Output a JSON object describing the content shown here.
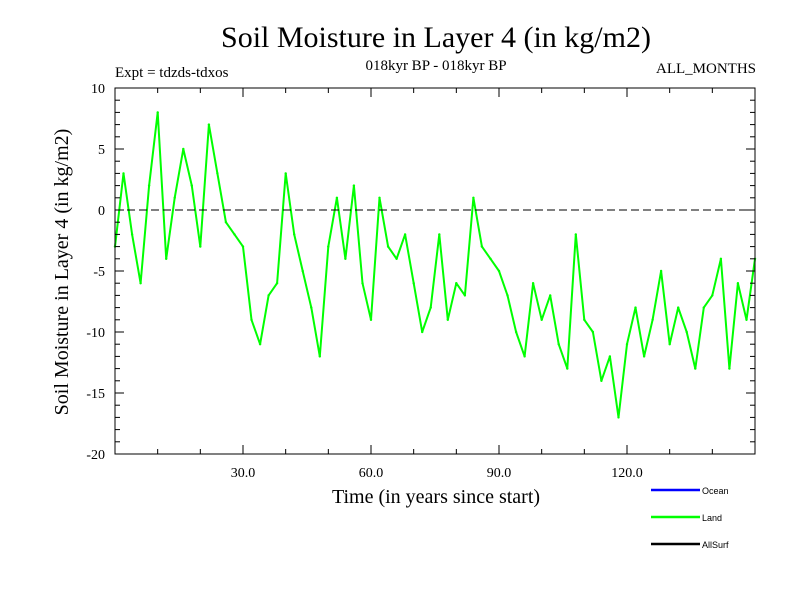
{
  "chart_data": {
    "type": "line",
    "title": "Soil Moisture in Layer 4 (in kg/m2)",
    "subtitle_left": "Expt = tdzds-tdxos",
    "subtitle_center": "018kyr BP - 018kyr BP",
    "subtitle_right": "ALL_MONTHS",
    "xlabel": "Time (in years since start)",
    "ylabel": "Soil Moisture in Layer 4 (in kg/m2)",
    "xlim": [
      0,
      150
    ],
    "ylim": [
      -20,
      10
    ],
    "x_ticks": [
      30,
      60,
      90,
      120
    ],
    "x_tick_labels": [
      "30.0",
      "60.0",
      "90.0",
      "120.0"
    ],
    "y_ticks": [
      10,
      5,
      0,
      -5,
      -10,
      -15,
      -20
    ],
    "y_tick_labels": [
      "10",
      "5",
      "0",
      "-5",
      "-10",
      "-15",
      "-20"
    ],
    "zero_line": 0,
    "legend": [
      {
        "name": "Ocean",
        "color": "#0000ff"
      },
      {
        "name": "Land",
        "color": "#00ff00"
      },
      {
        "name": "AllSurf",
        "color": "#000000"
      }
    ],
    "series": [
      {
        "name": "Land",
        "color": "#00ff00",
        "x": [
          0,
          2,
          4,
          6,
          8,
          10,
          12,
          14,
          16,
          18,
          20,
          22,
          24,
          26,
          28,
          30,
          32,
          34,
          36,
          38,
          40,
          42,
          44,
          46,
          48,
          50,
          52,
          54,
          56,
          58,
          60,
          62,
          64,
          66,
          68,
          70,
          72,
          74,
          76,
          78,
          80,
          82,
          84,
          86,
          88,
          90,
          92,
          94,
          96,
          98,
          100,
          102,
          104,
          106,
          108,
          110,
          112,
          114,
          116,
          118,
          120,
          122,
          124,
          126,
          128,
          130,
          132,
          134,
          136,
          138,
          140,
          142,
          144,
          146,
          148,
          150
        ],
        "values": [
          -3,
          3,
          -2,
          -6,
          2,
          8,
          -4,
          1,
          5,
          2,
          -3,
          7,
          3,
          -1,
          -2,
          -3,
          -9,
          -11,
          -7,
          -6,
          3,
          -2,
          -5,
          -8,
          -12,
          -3,
          1,
          -4,
          2,
          -6,
          -9,
          1,
          -3,
          -4,
          -2,
          -6,
          -10,
          -8,
          -2,
          -9,
          -6,
          -7,
          1,
          -3,
          -4,
          -5,
          -7,
          -10,
          -12,
          -6,
          -9,
          -7,
          -11,
          -13,
          -2,
          -9,
          -10,
          -14,
          -12,
          -17,
          -11,
          -8,
          -12,
          -9,
          -5,
          -11,
          -8,
          -10,
          -13,
          -8,
          -7,
          -4,
          -13,
          -6,
          -9,
          -4
        ]
      }
    ]
  }
}
